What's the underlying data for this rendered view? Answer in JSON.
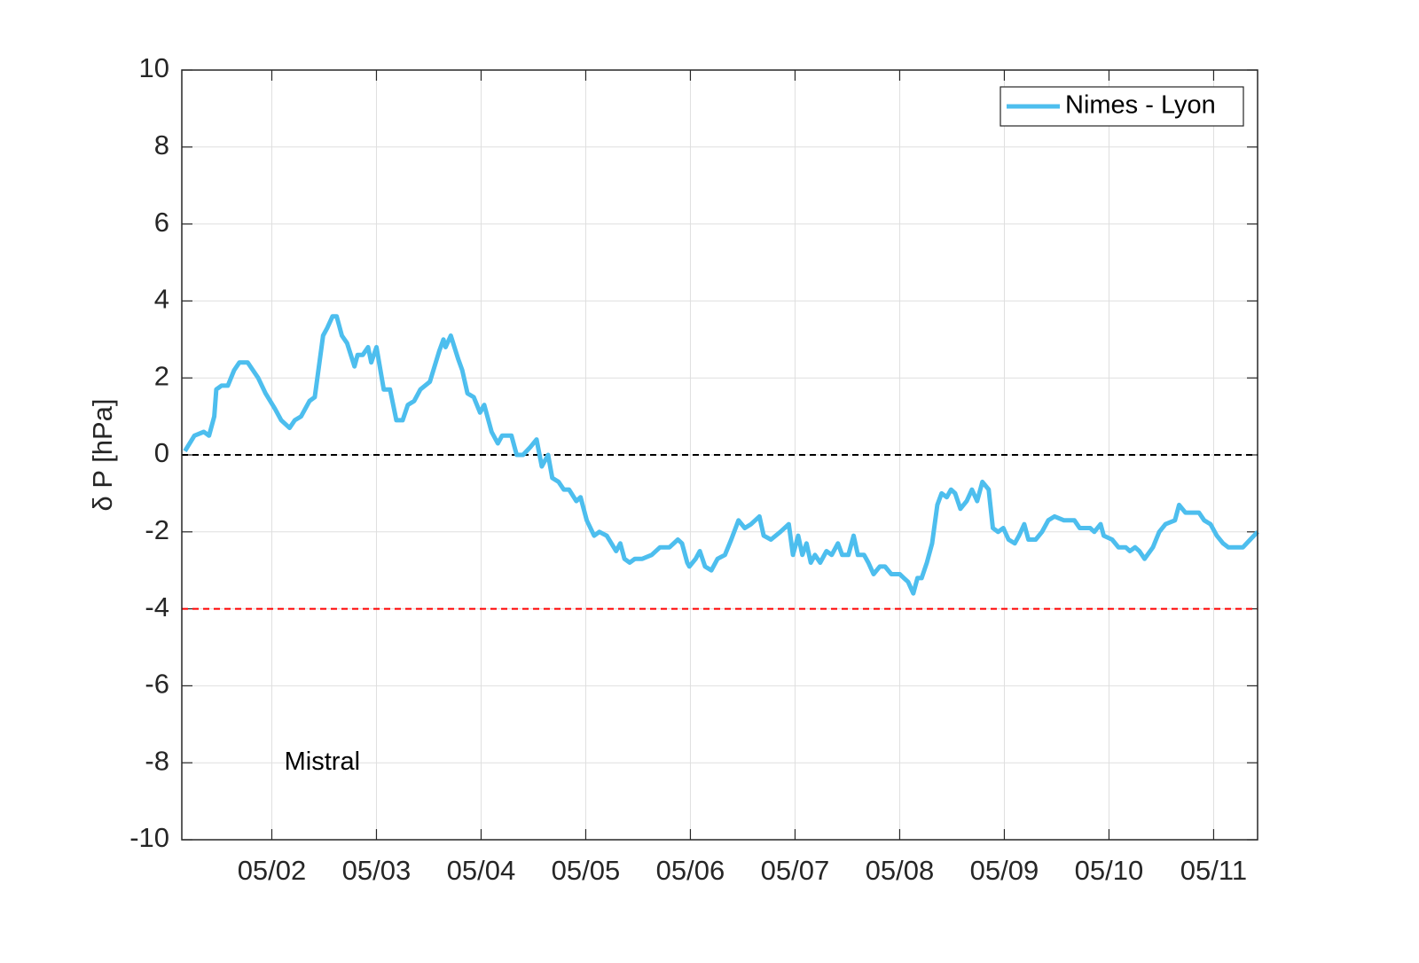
{
  "chart_data": {
    "type": "line",
    "y_label": "δ P [hPa]",
    "x": [
      1.17,
      1.26,
      1.35,
      1.4,
      1.45,
      1.47,
      1.52,
      1.58,
      1.64,
      1.69,
      1.77,
      1.82,
      1.87,
      1.94,
      2.03,
      2.09,
      2.17,
      2.22,
      2.28,
      2.36,
      2.41,
      2.49,
      2.53,
      2.58,
      2.62,
      2.67,
      2.72,
      2.79,
      2.82,
      2.87,
      2.92,
      2.95,
      3.0,
      3.07,
      3.13,
      3.19,
      3.25,
      3.3,
      3.36,
      3.42,
      3.51,
      3.6,
      3.64,
      3.66,
      3.71,
      3.78,
      3.82,
      3.87,
      3.93,
      3.99,
      4.03,
      4.1,
      4.16,
      4.2,
      4.29,
      4.34,
      4.4,
      4.47,
      4.53,
      4.58,
      4.64,
      4.68,
      4.74,
      4.79,
      4.84,
      4.91,
      4.95,
      5.01,
      5.08,
      5.13,
      5.2,
      5.29,
      5.33,
      5.37,
      5.42,
      5.47,
      5.54,
      5.63,
      5.71,
      5.8,
      5.88,
      5.92,
      5.97,
      5.99,
      6.05,
      6.09,
      6.14,
      6.2,
      6.26,
      6.33,
      6.39,
      6.46,
      6.52,
      6.58,
      6.66,
      6.7,
      6.77,
      6.86,
      6.94,
      6.98,
      7.03,
      7.07,
      7.11,
      7.15,
      7.19,
      7.24,
      7.3,
      7.35,
      7.41,
      7.45,
      7.51,
      7.56,
      7.6,
      7.66,
      7.7,
      7.75,
      7.81,
      7.86,
      7.92,
      8.0,
      8.04,
      8.08,
      8.13,
      8.17,
      8.21,
      8.26,
      8.31,
      8.36,
      8.4,
      8.45,
      8.49,
      8.53,
      8.58,
      8.64,
      8.69,
      8.74,
      8.79,
      8.85,
      8.89,
      8.94,
      8.99,
      9.04,
      9.1,
      9.14,
      9.19,
      9.23,
      9.3,
      9.36,
      9.42,
      9.48,
      9.57,
      9.67,
      9.72,
      9.82,
      9.86,
      9.92,
      9.95,
      10.03,
      10.09,
      10.16,
      10.2,
      10.25,
      10.29,
      10.34,
      10.42,
      10.48,
      10.54,
      10.63,
      10.67,
      10.73,
      10.86,
      10.91,
      10.97,
      11.03,
      11.09,
      11.14,
      11.28,
      11.35,
      11.42
    ],
    "series": [
      {
        "name": "Nimes - Lyon",
        "color": "#4dbeee",
        "values": [
          0.1,
          0.5,
          0.6,
          0.5,
          1.0,
          1.7,
          1.8,
          1.8,
          2.2,
          2.4,
          2.4,
          2.2,
          2.0,
          1.6,
          1.2,
          0.9,
          0.7,
          0.9,
          1.0,
          1.4,
          1.5,
          3.1,
          3.3,
          3.6,
          3.6,
          3.1,
          2.9,
          2.3,
          2.6,
          2.6,
          2.8,
          2.4,
          2.8,
          1.7,
          1.7,
          0.9,
          0.9,
          1.3,
          1.4,
          1.7,
          1.9,
          2.7,
          3.0,
          2.8,
          3.1,
          2.5,
          2.2,
          1.6,
          1.5,
          1.1,
          1.3,
          0.6,
          0.3,
          0.5,
          0.5,
          0.0,
          0.0,
          0.2,
          0.4,
          -0.3,
          0.0,
          -0.6,
          -0.7,
          -0.9,
          -0.9,
          -1.2,
          -1.1,
          -1.7,
          -2.1,
          -2.0,
          -2.1,
          -2.5,
          -2.3,
          -2.7,
          -2.8,
          -2.7,
          -2.7,
          -2.6,
          -2.4,
          -2.4,
          -2.2,
          -2.3,
          -2.8,
          -2.9,
          -2.7,
          -2.5,
          -2.9,
          -3.0,
          -2.7,
          -2.6,
          -2.2,
          -1.7,
          -1.9,
          -1.8,
          -1.6,
          -2.1,
          -2.2,
          -2.0,
          -1.8,
          -2.6,
          -2.1,
          -2.6,
          -2.3,
          -2.8,
          -2.6,
          -2.8,
          -2.5,
          -2.6,
          -2.3,
          -2.6,
          -2.6,
          -2.1,
          -2.6,
          -2.6,
          -2.8,
          -3.1,
          -2.9,
          -2.9,
          -3.1,
          -3.1,
          -3.2,
          -3.3,
          -3.6,
          -3.2,
          -3.2,
          -2.8,
          -2.3,
          -1.3,
          -1.0,
          -1.1,
          -0.9,
          -1.0,
          -1.4,
          -1.2,
          -0.9,
          -1.2,
          -0.7,
          -0.9,
          -1.9,
          -2.0,
          -1.9,
          -2.2,
          -2.3,
          -2.1,
          -1.8,
          -2.2,
          -2.2,
          -2.0,
          -1.7,
          -1.6,
          -1.7,
          -1.7,
          -1.9,
          -1.9,
          -2.0,
          -1.8,
          -2.1,
          -2.2,
          -2.4,
          -2.4,
          -2.5,
          -2.4,
          -2.5,
          -2.7,
          -2.4,
          -2.0,
          -1.8,
          -1.7,
          -1.3,
          -1.5,
          -1.5,
          -1.7,
          -1.8,
          -2.1,
          -2.3,
          -2.4,
          -2.4,
          -2.2,
          -2.0
        ]
      }
    ],
    "xlim": [
      1.14,
      11.42
    ],
    "xticks": [
      {
        "value": 2,
        "label": "05/02"
      },
      {
        "value": 3,
        "label": "05/03"
      },
      {
        "value": 4,
        "label": "05/04"
      },
      {
        "value": 5,
        "label": "05/05"
      },
      {
        "value": 6,
        "label": "05/06"
      },
      {
        "value": 7,
        "label": "05/07"
      },
      {
        "value": 8,
        "label": "05/08"
      },
      {
        "value": 9,
        "label": "05/09"
      },
      {
        "value": 10,
        "label": "05/10"
      },
      {
        "value": 11,
        "label": "05/11"
      }
    ],
    "ylim": [
      -10,
      10
    ],
    "yticks": [
      -10,
      -8,
      -6,
      -4,
      -2,
      0,
      2,
      4,
      6,
      8,
      10
    ],
    "reference_lines": [
      {
        "value": 0,
        "color": "#000000"
      },
      {
        "value": -4,
        "color": "#ff0000"
      }
    ],
    "annotations": [
      {
        "text": "Mistral",
        "x": 2.12,
        "y": -8
      }
    ],
    "grid": true,
    "legend": "upper right"
  }
}
